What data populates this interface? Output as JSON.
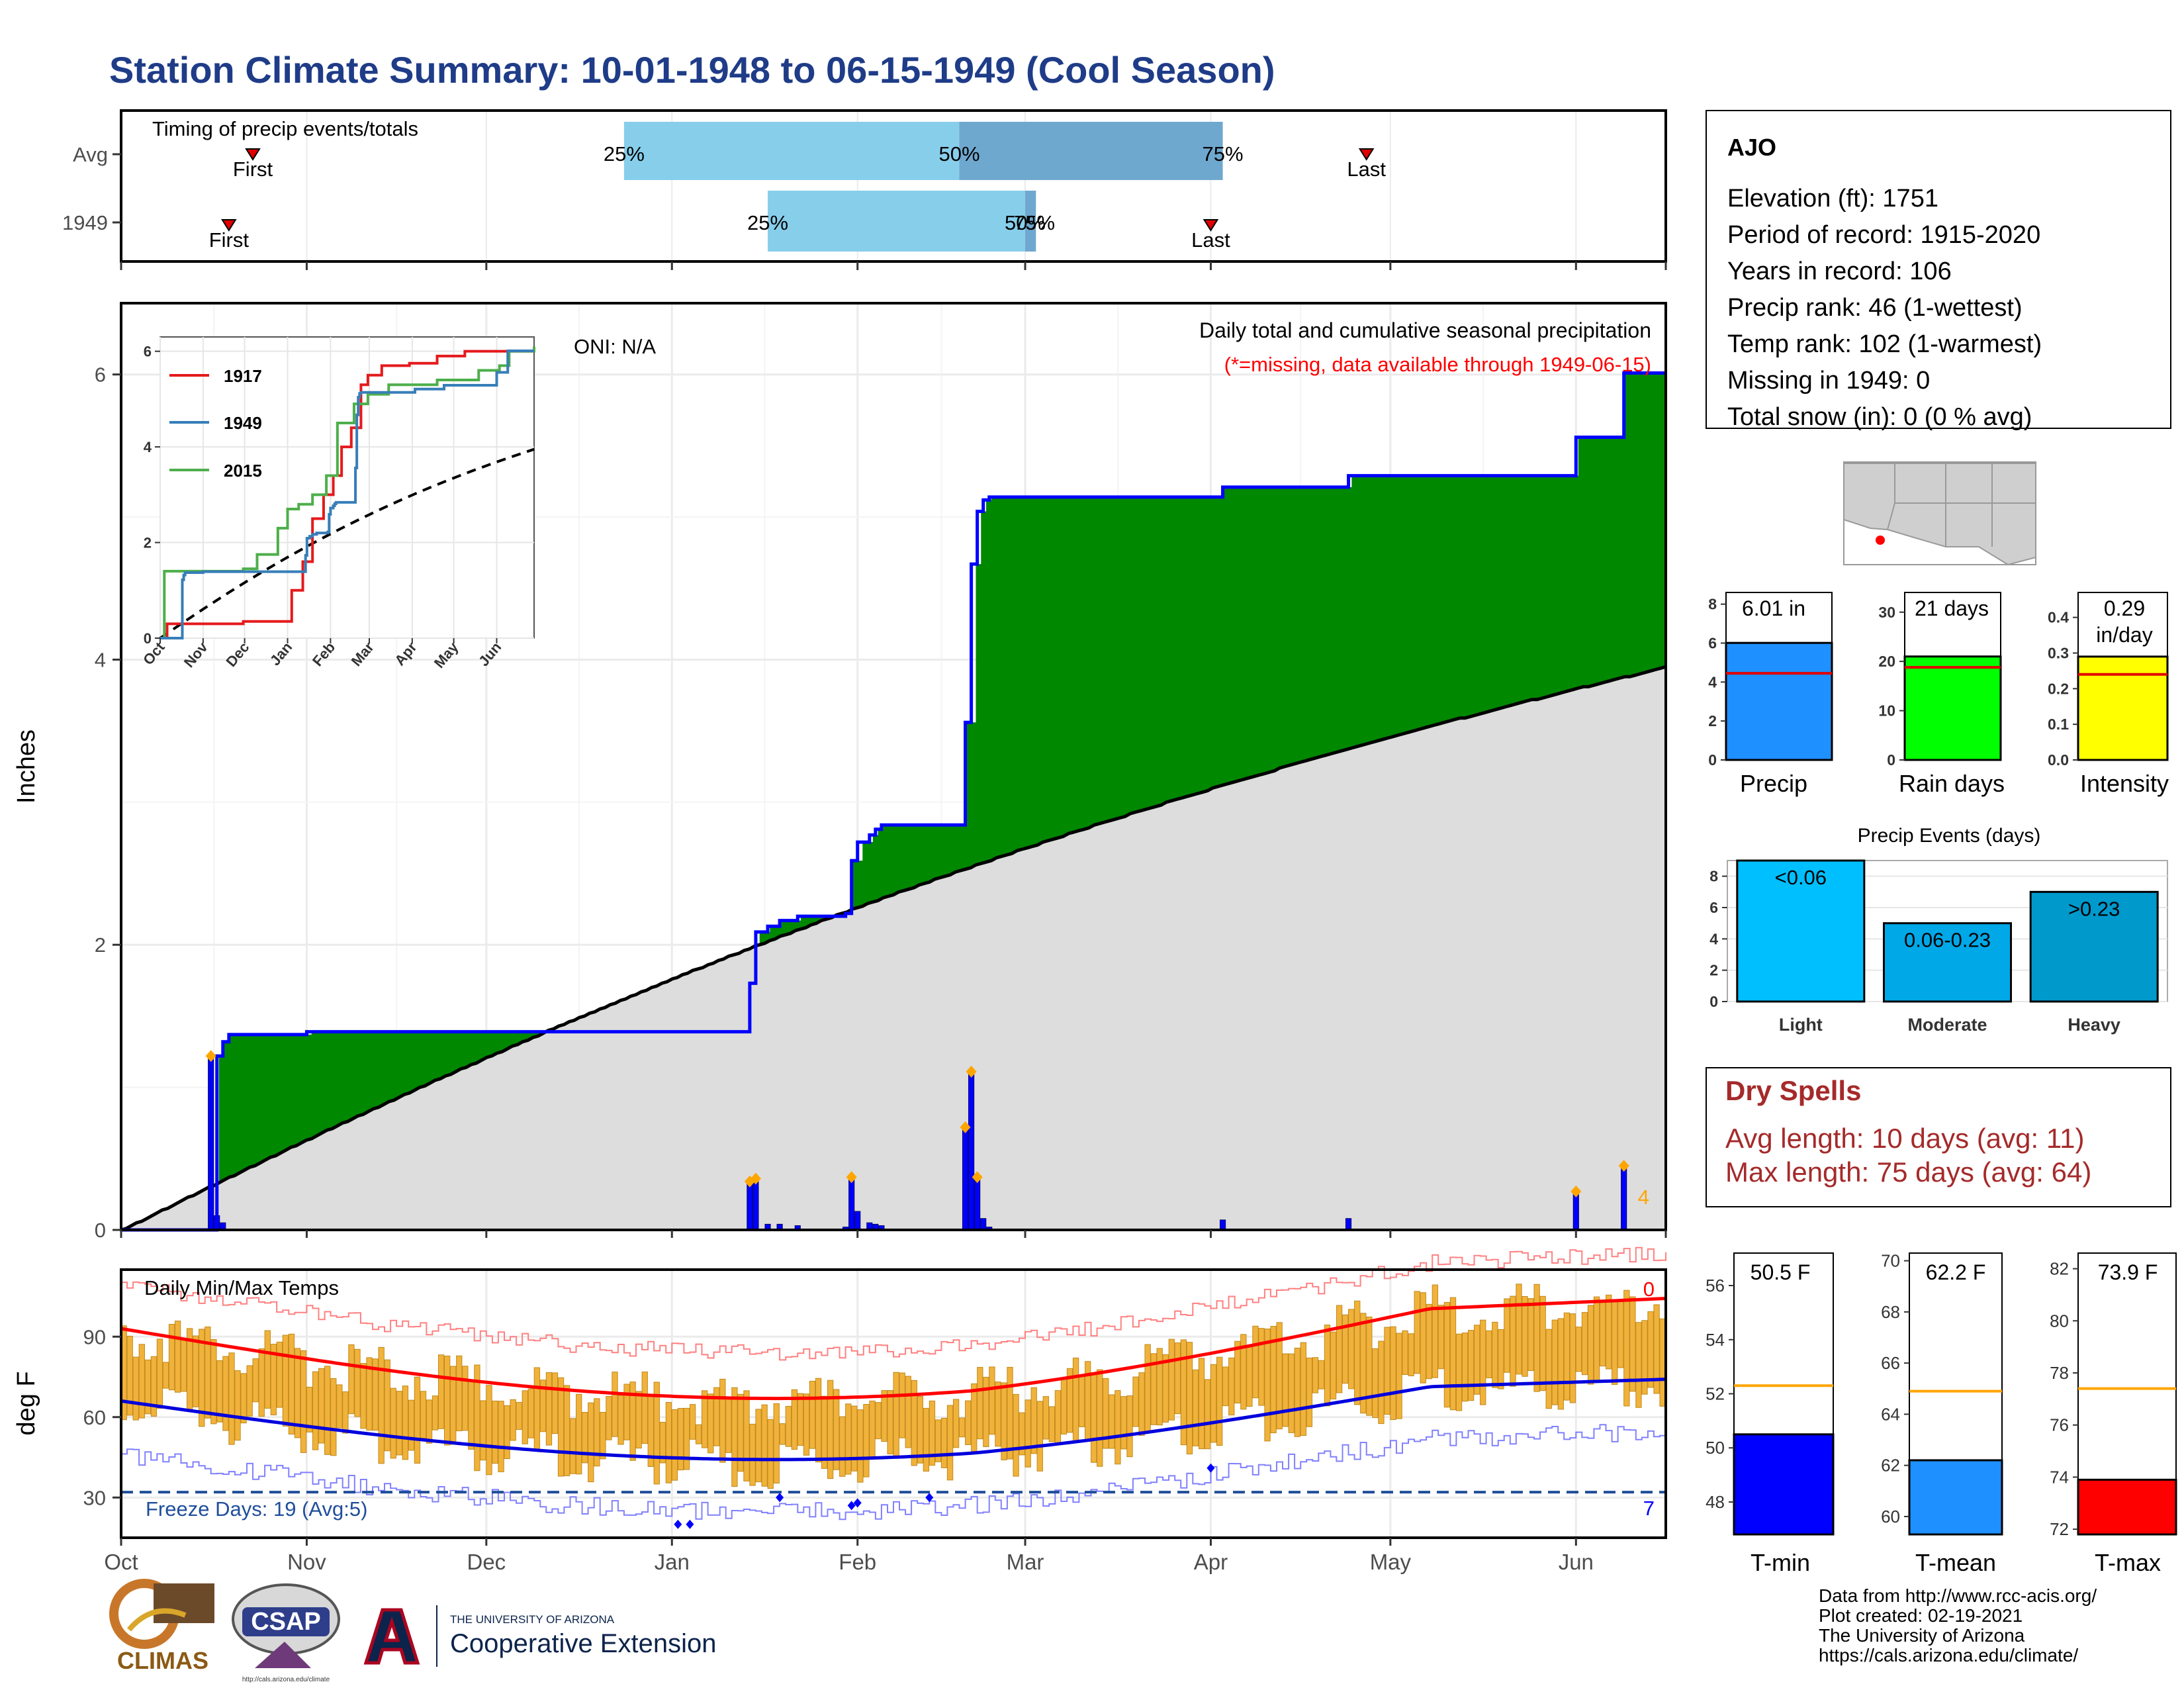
{
  "title": "Station Climate Summary: 10-01-1948 to 06-15-1949 (Cool Season)",
  "timing": {
    "title": "Timing of precip events/totals",
    "rows": [
      {
        "label": "Avg",
        "first": "First",
        "last": "Last",
        "p25": "25%",
        "p50": "50%",
        "p75": "75%"
      },
      {
        "label": "1949",
        "first": "First",
        "last": "Last",
        "p25": "25%",
        "p50": "50%",
        "p75": "75%"
      }
    ],
    "axis_days": {
      "avg_first": 22,
      "avg_25": 84,
      "avg_50": 140,
      "avg_75": 184,
      "avg_last": 208,
      "yr_first": 18,
      "yr_25": 108,
      "yr_50": 151,
      "yr_75": 152,
      "yr_last": 182
    }
  },
  "main_panel": {
    "ylabel": "Inches",
    "oni": "ONI: N/A",
    "title": "Daily total and cumulative seasonal precipitation",
    "missing_note": "(*=missing, data available through 1949-06-15)",
    "corner_value": "4",
    "colors": {
      "cum": "#0000ff",
      "above": "#008800",
      "below": "#8b5a14",
      "avg_fill": "#dddddd",
      "daily": "#0000ff",
      "marker": "#ffa500"
    }
  },
  "inset": {
    "legend": [
      {
        "name": "1917",
        "color": "#e41a1c"
      },
      {
        "name": "1949",
        "color": "#377eb8"
      },
      {
        "name": "2015",
        "color": "#4daf4a"
      }
    ],
    "ylim": [
      0,
      6.3
    ],
    "yticks": [
      "0",
      "2",
      "4",
      "6"
    ],
    "months": [
      "Oct",
      "Nov",
      "Dec",
      "Jan",
      "Feb",
      "Mar",
      "Apr",
      "May",
      "Jun"
    ]
  },
  "temp_panel": {
    "ylabel": "deg F",
    "title": "Daily Min/Max Temps",
    "freeze": "Freeze Days: 19 (Avg:5)",
    "corner_top": "0",
    "corner_bottom": "7",
    "yticks": [
      "30",
      "60",
      "90"
    ],
    "months": [
      "Oct",
      "Nov",
      "Dec",
      "Jan",
      "Feb",
      "Mar",
      "Apr",
      "May",
      "Jun"
    ]
  },
  "station": {
    "name": "AJO",
    "lines": [
      "Elevation (ft): 1751",
      "Period of record: 1915-2020",
      "Years in record: 106",
      "Precip rank: 46 (1-wettest)",
      "Temp rank: 102 (1-warmest)",
      "Missing in 1949: 0",
      "Total snow (in): 0 (0 % avg)"
    ]
  },
  "small_bars": [
    {
      "label": "Precip",
      "value_text": "6.01 in",
      "value": 6.01,
      "avg": 4.45,
      "ylim": [
        0,
        8.6
      ],
      "ticks": [
        "0",
        "2",
        "4",
        "6",
        "8"
      ],
      "tickvals": [
        0,
        2,
        4,
        6,
        8
      ],
      "color": "#1e90ff"
    },
    {
      "label": "Rain days",
      "value_text": "21 days",
      "value": 21,
      "avg": 18.8,
      "ylim": [
        0,
        34
      ],
      "ticks": [
        "0",
        "10",
        "20",
        "30"
      ],
      "tickvals": [
        0,
        10,
        20,
        30
      ],
      "color": "#00ff00"
    },
    {
      "label": "Intensity",
      "value_text": "0.29 in/day",
      "value": 0.29,
      "avg": 0.24,
      "ylim": [
        0,
        0.47
      ],
      "ticks": [
        "0.0",
        "0.1",
        "0.2",
        "0.3",
        "0.4"
      ],
      "tickvals": [
        0,
        0.1,
        0.2,
        0.3,
        0.4
      ],
      "color": "#ffff00"
    }
  ],
  "events_panel": {
    "title": "Precip Events (days)",
    "ylim": [
      0,
      9
    ],
    "ticks": [
      "0",
      "2",
      "4",
      "6",
      "8"
    ],
    "bars": [
      {
        "cat": "Light",
        "label": "<0.06",
        "value": 9,
        "color": "#00bfff"
      },
      {
        "cat": "Moderate",
        "label": "0.06-0.23",
        "value": 5,
        "color": "#00a8e8"
      },
      {
        "cat": "Heavy",
        "label": ">0.23",
        "value": 7,
        "color": "#0099cc"
      }
    ]
  },
  "dry_spells": {
    "title": "Dry Spells",
    "avg": "Avg length: 10 days (avg: 11)",
    "max": "Max length: 75 days (avg: 64)"
  },
  "temp_bars": [
    {
      "label": "T-min",
      "value_text": "50.5 F",
      "value": 50.5,
      "avg": 52.3,
      "ylim": [
        46.8,
        57.2
      ],
      "ticks": [
        "48",
        "50",
        "52",
        "54",
        "56"
      ],
      "tickvals": [
        48,
        50,
        52,
        54,
        56
      ],
      "color": "#0000ff"
    },
    {
      "label": "T-mean",
      "value_text": "62.2 F",
      "value": 62.2,
      "avg": 64.9,
      "ylim": [
        59.3,
        70.3
      ],
      "ticks": [
        "60",
        "62",
        "64",
        "66",
        "68",
        "70"
      ],
      "tickvals": [
        60,
        62,
        64,
        66,
        68,
        70
      ],
      "color": "#1e90ff"
    },
    {
      "label": "T-max",
      "value_text": "73.9 F",
      "value": 73.9,
      "avg": 77.4,
      "ylim": [
        71.8,
        82.6
      ],
      "ticks": [
        "72",
        "74",
        "76",
        "78",
        "80",
        "82"
      ],
      "tickvals": [
        72,
        74,
        76,
        78,
        80,
        82
      ],
      "color": "#ff0000"
    }
  ],
  "logos": {
    "climas": "CLIMAS",
    "csap": "CSAP",
    "csap_url": "http://cals.arizona.edu/climate",
    "ua_top": "THE UNIVERSITY OF ARIZONA",
    "ua_bottom": "Cooperative Extension"
  },
  "footer": [
    "Data from http://www.rcc-acis.org/",
    "Plot created: 02-19-2021",
    "The University of Arizona",
    "https://cals.arizona.edu/climate/"
  ],
  "chart_data": [
    {
      "type": "area",
      "title": "Daily total and cumulative seasonal precipitation",
      "ylabel": "Inches",
      "ylim": [
        0,
        6.5
      ],
      "x_unit": "days since Oct 1",
      "cumulative_steps": [
        [
          0,
          0
        ],
        [
          15,
          0
        ],
        [
          16,
          1.22
        ],
        [
          17,
          1.32
        ],
        [
          18,
          1.37
        ],
        [
          30,
          1.37
        ],
        [
          31,
          1.39
        ],
        [
          90,
          1.39
        ],
        [
          91,
          1.39
        ],
        [
          104,
          1.39
        ],
        [
          105,
          1.73
        ],
        [
          106,
          2.09
        ],
        [
          108,
          2.13
        ],
        [
          110,
          2.17
        ],
        [
          113,
          2.2
        ],
        [
          121,
          2.22
        ],
        [
          122,
          2.59
        ],
        [
          123,
          2.72
        ],
        [
          125,
          2.77
        ],
        [
          126,
          2.81
        ],
        [
          127,
          2.84
        ],
        [
          140,
          2.84
        ],
        [
          141,
          3.56
        ],
        [
          142,
          4.67
        ],
        [
          143,
          5.04
        ],
        [
          144,
          5.12
        ],
        [
          145,
          5.14
        ],
        [
          183,
          5.14
        ],
        [
          184,
          5.21
        ],
        [
          185,
          5.21
        ],
        [
          204,
          5.21
        ],
        [
          205,
          5.29
        ],
        [
          242,
          5.29
        ],
        [
          243,
          5.56
        ],
        [
          250,
          5.56
        ],
        [
          251,
          6.01
        ],
        [
          258,
          6.01
        ]
      ],
      "daily_precip": [
        [
          15,
          1.22
        ],
        [
          16,
          0.1
        ],
        [
          17,
          0.05
        ],
        [
          105,
          0.34
        ],
        [
          106,
          0.36
        ],
        [
          108,
          0.04
        ],
        [
          110,
          0.04
        ],
        [
          113,
          0.03
        ],
        [
          121,
          0.02
        ],
        [
          122,
          0.37
        ],
        [
          123,
          0.13
        ],
        [
          125,
          0.05
        ],
        [
          126,
          0.04
        ],
        [
          127,
          0.03
        ],
        [
          141,
          0.72
        ],
        [
          142,
          1.11
        ],
        [
          143,
          0.37
        ],
        [
          144,
          0.08
        ],
        [
          145,
          0.02
        ],
        [
          184,
          0.07
        ],
        [
          205,
          0.08
        ],
        [
          243,
          0.27
        ],
        [
          251,
          0.45
        ]
      ],
      "series": [
        {
          "name": "1949",
          "values_note": "cumulative seasonal precipitation"
        }
      ]
    },
    {
      "type": "line",
      "title": "Daily Min/Max Temps",
      "ylabel": "deg F",
      "ylim": [
        15,
        115
      ]
    }
  ]
}
